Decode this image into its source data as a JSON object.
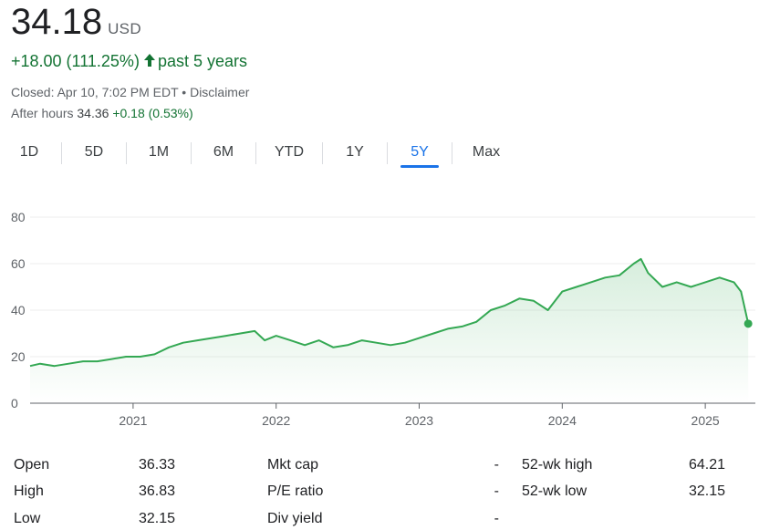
{
  "header": {
    "price": "34.18",
    "currency": "USD",
    "change": "+18.00 (111.25%)",
    "change_period": "past 5 years",
    "closed_text": "Closed: Apr 10, 7:02 PM EDT",
    "separator": " • ",
    "disclaimer": "Disclaimer",
    "after_hours_label": "After hours",
    "after_hours_price": "34.36",
    "after_hours_change": "+0.18 (0.53%)"
  },
  "colors": {
    "positive": "#137333",
    "line": "#34a853",
    "accent": "#1a73e8"
  },
  "tabs": [
    {
      "label": "1D",
      "active": false
    },
    {
      "label": "5D",
      "active": false
    },
    {
      "label": "1M",
      "active": false
    },
    {
      "label": "6M",
      "active": false
    },
    {
      "label": "YTD",
      "active": false
    },
    {
      "label": "1Y",
      "active": false
    },
    {
      "label": "5Y",
      "active": true
    },
    {
      "label": "Max",
      "active": false
    }
  ],
  "chart_data": {
    "type": "area",
    "x_tick_labels": [
      "2021",
      "2022",
      "2023",
      "2024",
      "2025"
    ],
    "y_tick_labels": [
      "0",
      "20",
      "40",
      "60",
      "80"
    ],
    "ylim": [
      0,
      80
    ],
    "xlim": [
      2020.28,
      2025.35
    ],
    "grid": true,
    "x": [
      2020.28,
      2020.35,
      2020.45,
      2020.55,
      2020.65,
      2020.75,
      2020.85,
      2020.95,
      2021.05,
      2021.15,
      2021.25,
      2021.35,
      2021.45,
      2021.55,
      2021.65,
      2021.75,
      2021.85,
      2021.92,
      2022.0,
      2022.1,
      2022.2,
      2022.3,
      2022.4,
      2022.5,
      2022.6,
      2022.7,
      2022.8,
      2022.9,
      2023.0,
      2023.1,
      2023.2,
      2023.3,
      2023.4,
      2023.5,
      2023.6,
      2023.7,
      2023.8,
      2023.9,
      2024.0,
      2024.1,
      2024.2,
      2024.3,
      2024.4,
      2024.5,
      2024.55,
      2024.6,
      2024.7,
      2024.8,
      2024.9,
      2025.0,
      2025.1,
      2025.2,
      2025.25,
      2025.3
    ],
    "y": [
      16,
      17,
      16,
      17,
      18,
      18,
      19,
      20,
      20,
      21,
      24,
      26,
      27,
      28,
      29,
      30,
      31,
      27,
      29,
      27,
      25,
      27,
      24,
      25,
      27,
      26,
      25,
      26,
      28,
      30,
      32,
      33,
      35,
      40,
      42,
      45,
      44,
      40,
      48,
      50,
      52,
      54,
      55,
      60,
      62,
      56,
      50,
      52,
      50,
      52,
      54,
      52,
      48,
      34.18
    ]
  },
  "stats": {
    "col1": [
      {
        "label": "Open",
        "value": "36.33"
      },
      {
        "label": "High",
        "value": "36.83"
      },
      {
        "label": "Low",
        "value": "32.15"
      }
    ],
    "col2": [
      {
        "label": "Mkt cap",
        "value": "-"
      },
      {
        "label": "P/E ratio",
        "value": "-"
      },
      {
        "label": "Div yield",
        "value": "-"
      }
    ],
    "col3": [
      {
        "label": "52-wk high",
        "value": "64.21"
      },
      {
        "label": "52-wk low",
        "value": "32.15"
      }
    ]
  }
}
